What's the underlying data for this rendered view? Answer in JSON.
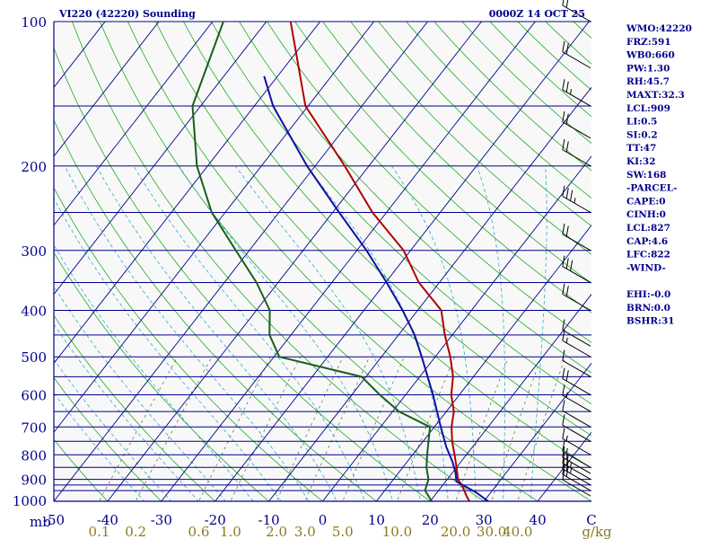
{
  "header": {
    "station": "VI220 (42220) Sounding",
    "datetime": "0000Z 14 OCT 25"
  },
  "stats": [
    "WMO:42220",
    "FRZ:591",
    "WB0:660",
    "PW:1.30",
    "RH:45.7",
    "MAXT:32.3",
    "LCL:909",
    "LI:0.5",
    "SI:0.2",
    "TT:47",
    "KI:32",
    "SW:168",
    "-PARCEL-",
    "CAPE:0",
    "CINH:0",
    "LCL:827",
    "CAP:4.6",
    "LFC:822",
    "-WIND-",
    "",
    "EHI:-0.0",
    "BRN:0.0",
    "BSHR:31"
  ],
  "colors": {
    "isobar": "#00008b",
    "isotherm": "#00008b",
    "dry_adiabat": "#22aa22",
    "moist_adiabat": "#33aacc",
    "mixing_ratio": "#556b2f",
    "temperature": "#b00000",
    "dewpoint": "#1a5e1a",
    "parcel": "#1010a0",
    "mixratio_text": "#8b7a1a",
    "wind_barb": "#000000"
  },
  "chart_data": {
    "type": "line",
    "title": "",
    "xlabel": "",
    "ylabel": "mb",
    "y_scale": "log",
    "ylim": [
      1000,
      100
    ],
    "xlim": [
      -50,
      50
    ],
    "p_ticks": [
      100,
      200,
      300,
      400,
      500,
      600,
      700,
      800,
      900,
      1000
    ],
    "isobar_levels": [
      100,
      150,
      200,
      250,
      300,
      350,
      400,
      450,
      500,
      550,
      600,
      650,
      700,
      750,
      800,
      850,
      900,
      925,
      950,
      1000
    ],
    "t_ticks": [
      -50,
      -40,
      -30,
      -20,
      -10,
      0,
      10,
      20,
      30,
      40,
      50
    ],
    "t_tick_labels": [
      "-50",
      "-40",
      "-30",
      "-20",
      "-10",
      "0",
      "10",
      "20",
      "30",
      "40",
      "C"
    ],
    "mixing_ratio_labels": [
      "0.1",
      "0.2",
      "0.6",
      "1.0",
      "2.0",
      "3.0",
      "5.0",
      "10.0",
      "20.0",
      "30.0",
      "40.0",
      "g/kg"
    ],
    "series": [
      {
        "key": "temperature",
        "points": [
          [
            1000,
            27.3
          ],
          [
            975,
            26.0
          ],
          [
            950,
            24.8
          ],
          [
            925,
            23.5
          ],
          [
            900,
            22.0
          ],
          [
            850,
            20.0
          ],
          [
            800,
            17.8
          ],
          [
            750,
            15.4
          ],
          [
            700,
            13.2
          ],
          [
            650,
            11.4
          ],
          [
            600,
            8.5
          ],
          [
            550,
            6.2
          ],
          [
            500,
            2.8
          ],
          [
            450,
            -1.4
          ],
          [
            400,
            -5.6
          ],
          [
            350,
            -13.8
          ],
          [
            300,
            -21.3
          ],
          [
            250,
            -32.6
          ],
          [
            200,
            -44.5
          ],
          [
            150,
            -60.5
          ],
          [
            100,
            -75.5
          ]
        ]
      },
      {
        "key": "dewpoint",
        "points": [
          [
            1000,
            20.3
          ],
          [
            950,
            17.5
          ],
          [
            925,
            17.0
          ],
          [
            900,
            16.5
          ],
          [
            850,
            14.4
          ],
          [
            800,
            12.7
          ],
          [
            700,
            9.2
          ],
          [
            650,
            1.2
          ],
          [
            600,
            -4.8
          ],
          [
            550,
            -10.8
          ],
          [
            500,
            -29.0
          ],
          [
            450,
            -34.0
          ],
          [
            400,
            -37.5
          ],
          [
            350,
            -44.0
          ],
          [
            300,
            -52.5
          ],
          [
            250,
            -62.5
          ],
          [
            200,
            -72.0
          ],
          [
            150,
            -81.5
          ],
          [
            100,
            -88.0
          ]
        ]
      },
      {
        "key": "parcel",
        "points": [
          [
            1000,
            30.8
          ],
          [
            960,
            27.4
          ],
          [
            909,
            22.0
          ],
          [
            870,
            20.5
          ],
          [
            827,
            18.4
          ],
          [
            770,
            15.1
          ],
          [
            700,
            11.2
          ],
          [
            600,
            5.1
          ],
          [
            500,
            -2.5
          ],
          [
            450,
            -7.0
          ],
          [
            400,
            -12.8
          ],
          [
            350,
            -19.8
          ],
          [
            300,
            -28.2
          ],
          [
            250,
            -38.8
          ],
          [
            200,
            -51.5
          ],
          [
            150,
            -66.5
          ],
          [
            130,
            -72.5
          ]
        ]
      }
    ],
    "wind_barbs": [
      {
        "p": 975,
        "speed": 10
      },
      {
        "p": 950,
        "speed": 20
      },
      {
        "p": 925,
        "speed": 25
      },
      {
        "p": 900,
        "speed": 25
      },
      {
        "p": 875,
        "speed": 15
      },
      {
        "p": 850,
        "speed": 15
      },
      {
        "p": 800,
        "speed": 15
      },
      {
        "p": 750,
        "speed": 10
      },
      {
        "p": 700,
        "speed": 10
      },
      {
        "p": 650,
        "speed": 15
      },
      {
        "p": 600,
        "speed": 20
      },
      {
        "p": 550,
        "speed": 10
      },
      {
        "p": 500,
        "speed": 15
      },
      {
        "p": 475,
        "speed": 10
      },
      {
        "p": 400,
        "speed": 20
      },
      {
        "p": 350,
        "speed": 30
      },
      {
        "p": 300,
        "speed": 20
      },
      {
        "p": 250,
        "speed": 35
      },
      {
        "p": 200,
        "speed": 20
      },
      {
        "p": 175,
        "speed": 20
      },
      {
        "p": 150,
        "speed": 25
      },
      {
        "p": 125,
        "speed": 20
      },
      {
        "p": 100,
        "speed": 20
      }
    ]
  }
}
